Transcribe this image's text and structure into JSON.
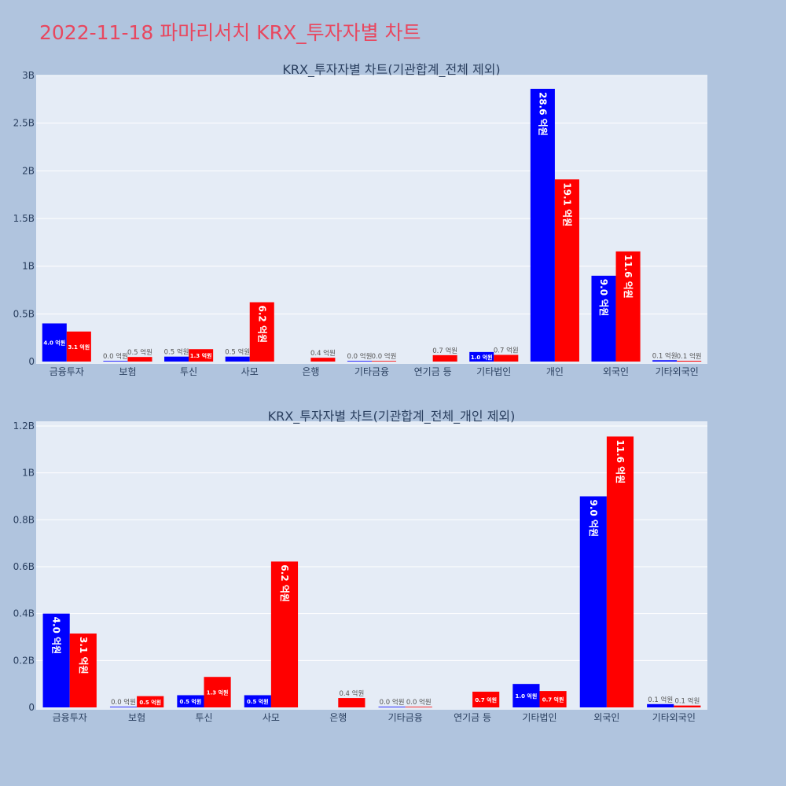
{
  "page": {
    "title": "2022-11-18 파마리서치 KRX_투자자별 차트",
    "title_color": "#e8475f",
    "background": "#b0c4de"
  },
  "colors": {
    "series_1": "#0000ff",
    "series_2": "#ff0000",
    "plot_bg": "#e5ecf6",
    "grid": "#ffffff"
  },
  "chart_data": [
    {
      "type": "bar",
      "title": "KRX_투자자별 차트(기관합계_전체 제외)",
      "xlabel": "",
      "ylabel": "",
      "ylim": [
        0,
        3000000000
      ],
      "yticks": [
        0,
        500000000,
        1000000000,
        1500000000,
        2000000000,
        2500000000,
        3000000000
      ],
      "ytick_labels": [
        "0",
        "0.5B",
        "1B",
        "1.5B",
        "2B",
        "2.5B",
        "3B"
      ],
      "grid": true,
      "legend": "none",
      "categories": [
        "금융투자",
        "보험",
        "투신",
        "사모",
        "은행",
        "기타금융",
        "연기금 등",
        "기타법인",
        "개인",
        "외국인",
        "기타외국인"
      ],
      "series": [
        {
          "color": "#0000ff",
          "values": [
            400000000,
            2000000,
            52000000,
            52000000,
            null,
            2000000,
            null,
            100000000,
            2860000000,
            900000000,
            14000000
          ],
          "labels": [
            "4.0 억원",
            "0.0 억원",
            "0.5 억원",
            "0.5 억원",
            "",
            "0.0 억원",
            "",
            "1.0 억원",
            "28.6 억원",
            "9.0 억원",
            "0.1 억원"
          ]
        },
        {
          "color": "#ff0000",
          "values": [
            315000000,
            48000000,
            130000000,
            622000000,
            40000000,
            1000000,
            67000000,
            70000000,
            1910000000,
            1155000000,
            8000000
          ],
          "labels": [
            "3.1 억원",
            "0.5 억원",
            "1.3 억원",
            "6.2 억원",
            "0.4 억원",
            "0.0 억원",
            "0.7 억원",
            "0.7 억원",
            "19.1 억원",
            "11.6 억원",
            "0.1 억원"
          ]
        }
      ]
    },
    {
      "type": "bar",
      "title": "KRX_투자자별 차트(기관합계_전체_개인 제외)",
      "xlabel": "",
      "ylabel": "",
      "ylim": [
        0,
        1220000000
      ],
      "yticks": [
        0,
        200000000,
        400000000,
        600000000,
        800000000,
        1000000000,
        1200000000
      ],
      "ytick_labels": [
        "0",
        "0.2B",
        "0.4B",
        "0.6B",
        "0.8B",
        "1B",
        "1.2B"
      ],
      "grid": true,
      "legend": "none",
      "categories": [
        "금융투자",
        "보험",
        "투신",
        "사모",
        "은행",
        "기타금융",
        "연기금 등",
        "기타법인",
        "외국인",
        "기타외국인"
      ],
      "series": [
        {
          "color": "#0000ff",
          "values": [
            400000000,
            2000000,
            52000000,
            52000000,
            null,
            2000000,
            null,
            100000000,
            900000000,
            14000000
          ],
          "labels": [
            "4.0 억원",
            "0.0 억원",
            "0.5 억원",
            "0.5 억원",
            "",
            "0.0 억원",
            "",
            "1.0 억원",
            "9.0 억원",
            "0.1 억원"
          ]
        },
        {
          "color": "#ff0000",
          "values": [
            315000000,
            48000000,
            130000000,
            622000000,
            40000000,
            1000000,
            67000000,
            70000000,
            1155000000,
            8000000
          ],
          "labels": [
            "3.1 억원",
            "0.5 억원",
            "1.3 억원",
            "6.2 억원",
            "0.4 억원",
            "0.0 억원",
            "0.7 억원",
            "0.7 억원",
            "11.6 억원",
            "0.1 억원"
          ]
        }
      ]
    }
  ]
}
